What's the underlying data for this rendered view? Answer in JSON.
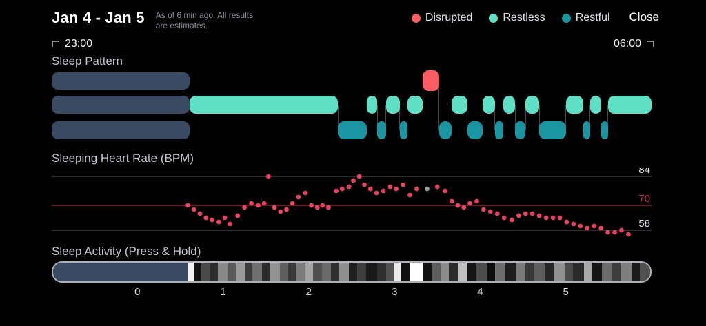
{
  "header": {
    "title": "Jan 4 - Jan 5",
    "note_line1": "As of 6 min ago. All results",
    "note_line2": "are estimates.",
    "close_label": "Close"
  },
  "legend": {
    "items": [
      {
        "label": "Disrupted",
        "color": "#fb5d63"
      },
      {
        "label": "Restless",
        "color": "#5fe0c4"
      },
      {
        "label": "Restful",
        "color": "#1a96a3"
      }
    ]
  },
  "timeline": {
    "start": "23:00",
    "end": "06:00"
  },
  "sections": {
    "sleep_pattern_title": "Sleep Pattern",
    "heart_rate_title": "Sleeping Heart Rate (BPM)",
    "sleep_activity_title": "Sleep Activity (Press & Hold)"
  },
  "colors": {
    "background": "#000000",
    "slate": "#3a4a63",
    "hr_dot": "#ea4361",
    "hr_line": "#d7365a",
    "grid": "#57575b",
    "tick_label": "#e2e2e6",
    "gray_dot": "#9a9aa0",
    "activity_border": "#aeb3bb"
  },
  "chart_data": [
    {
      "type": "hypnogram",
      "title": "Sleep Pattern",
      "xlim_hours": [
        -1,
        6
      ],
      "x_start_label": "23:00",
      "x_end_label": "06:00",
      "states": [
        "disrupted",
        "restless",
        "restful"
      ],
      "presleep_segment": {
        "start": -1.0,
        "end": 0.61
      },
      "segments": [
        {
          "state": "restless",
          "start": 0.61,
          "end": 2.34
        },
        {
          "state": "restful",
          "start": 2.34,
          "end": 2.68
        },
        {
          "state": "restless",
          "start": 2.68,
          "end": 2.8
        },
        {
          "state": "restful",
          "start": 2.8,
          "end": 2.9
        },
        {
          "state": "restless",
          "start": 2.9,
          "end": 3.06
        },
        {
          "state": "restful",
          "start": 3.06,
          "end": 3.15
        },
        {
          "state": "restless",
          "start": 3.15,
          "end": 3.33
        },
        {
          "state": "disrupted",
          "start": 3.33,
          "end": 3.52
        },
        {
          "state": "restful",
          "start": 3.52,
          "end": 3.67
        },
        {
          "state": "restless",
          "start": 3.67,
          "end": 3.85
        },
        {
          "state": "restful",
          "start": 3.85,
          "end": 4.03
        },
        {
          "state": "restless",
          "start": 4.03,
          "end": 4.17
        },
        {
          "state": "restful",
          "start": 4.17,
          "end": 4.27
        },
        {
          "state": "restless",
          "start": 4.27,
          "end": 4.41
        },
        {
          "state": "restful",
          "start": 4.41,
          "end": 4.53
        },
        {
          "state": "restless",
          "start": 4.53,
          "end": 4.69
        },
        {
          "state": "restful",
          "start": 4.69,
          "end": 5.0
        },
        {
          "state": "restless",
          "start": 5.0,
          "end": 5.2
        },
        {
          "state": "restful",
          "start": 5.2,
          "end": 5.28
        },
        {
          "state": "restless",
          "start": 5.28,
          "end": 5.41
        },
        {
          "state": "restful",
          "start": 5.41,
          "end": 5.49
        },
        {
          "state": "restless",
          "start": 5.49,
          "end": 6.0
        }
      ]
    },
    {
      "type": "scatter",
      "title": "Sleeping Heart Rate (BPM)",
      "xlim_hours": [
        -1,
        6
      ],
      "ylim": [
        54,
        88
      ],
      "yticks": [
        84,
        70,
        58
      ],
      "reference_line": 70,
      "points": [
        [
          0.59,
          70
        ],
        [
          0.66,
          68
        ],
        [
          0.73,
          66
        ],
        [
          0.8,
          64
        ],
        [
          0.87,
          63
        ],
        [
          0.95,
          62
        ],
        [
          1.02,
          64
        ],
        [
          1.08,
          61
        ],
        [
          1.17,
          65
        ],
        [
          1.25,
          69
        ],
        [
          1.33,
          71
        ],
        [
          1.41,
          70
        ],
        [
          1.48,
          71
        ],
        [
          1.53,
          84
        ],
        [
          1.6,
          69
        ],
        [
          1.67,
          67
        ],
        [
          1.74,
          68
        ],
        [
          1.81,
          71
        ],
        [
          1.88,
          74
        ],
        [
          1.96,
          76
        ],
        [
          2.03,
          70
        ],
        [
          2.1,
          69
        ],
        [
          2.16,
          70
        ],
        [
          2.23,
          69
        ],
        [
          2.32,
          77
        ],
        [
          2.39,
          78
        ],
        [
          2.47,
          79
        ],
        [
          2.52,
          82
        ],
        [
          2.59,
          84
        ],
        [
          2.65,
          80
        ],
        [
          2.72,
          78
        ],
        [
          2.79,
          76
        ],
        [
          2.87,
          77
        ],
        [
          2.95,
          79
        ],
        [
          3.02,
          78
        ],
        [
          3.1,
          80
        ],
        [
          3.18,
          75
        ],
        [
          3.26,
          78
        ],
        [
          3.5,
          79
        ],
        [
          3.59,
          77
        ],
        [
          3.67,
          72
        ],
        [
          3.74,
          70
        ],
        [
          3.81,
          69
        ],
        [
          3.88,
          71
        ],
        [
          3.96,
          72
        ],
        [
          4.04,
          68
        ],
        [
          4.12,
          67
        ],
        [
          4.2,
          66
        ],
        [
          4.28,
          64
        ],
        [
          4.37,
          63
        ],
        [
          4.45,
          65
        ],
        [
          4.53,
          66
        ],
        [
          4.61,
          66
        ],
        [
          4.69,
          65
        ],
        [
          4.77,
          64
        ],
        [
          4.85,
          64
        ],
        [
          4.93,
          64
        ],
        [
          5.01,
          62
        ],
        [
          5.09,
          61
        ],
        [
          5.17,
          60
        ],
        [
          5.25,
          59
        ],
        [
          5.33,
          60
        ],
        [
          5.41,
          59
        ],
        [
          5.49,
          57
        ],
        [
          5.57,
          57
        ],
        [
          5.65,
          58
        ],
        [
          5.73,
          56
        ]
      ],
      "gray_point": [
        3.38,
        78
      ]
    },
    {
      "type": "heatmap",
      "title": "Sleep Activity (Press & Hold)",
      "xlim_hours": [
        -1,
        6
      ],
      "x_ticks": [
        0,
        1,
        2,
        3,
        4,
        5
      ],
      "presleep_weight": 160,
      "segments": [
        [
          7,
          "#f5f5f5"
        ],
        [
          9,
          "#141414"
        ],
        [
          11,
          "#4a4a4a"
        ],
        [
          9,
          "#2e2e2e"
        ],
        [
          12,
          "#8a8a8a"
        ],
        [
          9,
          "#5a5a5a"
        ],
        [
          11,
          "#9b9b9b"
        ],
        [
          8,
          "#3c3c3c"
        ],
        [
          12,
          "#6f6f6f"
        ],
        [
          9,
          "#2a2a2a"
        ],
        [
          12,
          "#939393"
        ],
        [
          10,
          "#5f5f5f"
        ],
        [
          9,
          "#3a3a3a"
        ],
        [
          12,
          "#7d7d7d"
        ],
        [
          9,
          "#a4a4a4"
        ],
        [
          10,
          "#4f4f4f"
        ],
        [
          11,
          "#6a6a6a"
        ],
        [
          9,
          "#303030"
        ],
        [
          12,
          "#8f8f8f"
        ],
        [
          10,
          "#1f1f1f"
        ],
        [
          11,
          "#3f3f3f"
        ],
        [
          13,
          "#181818"
        ],
        [
          10,
          "#2f2f2f"
        ],
        [
          9,
          "#515151"
        ],
        [
          9,
          "#e9e9e9"
        ],
        [
          10,
          "#101010"
        ],
        [
          16,
          "#ffffff"
        ],
        [
          10,
          "#121212"
        ],
        [
          11,
          "#5c5c5c"
        ],
        [
          10,
          "#8c8c8c"
        ],
        [
          11,
          "#2c2c2c"
        ],
        [
          10,
          "#bfbfbf"
        ],
        [
          11,
          "#161616"
        ],
        [
          13,
          "#4c4c4c"
        ],
        [
          10,
          "#0d0d0d"
        ],
        [
          12,
          "#6e6e6e"
        ],
        [
          13,
          "#1d1d1d"
        ],
        [
          11,
          "#7a7a7a"
        ],
        [
          10,
          "#383838"
        ],
        [
          13,
          "#5e5e5e"
        ],
        [
          11,
          "#262626"
        ],
        [
          12,
          "#909090"
        ],
        [
          10,
          "#4a4a4a"
        ],
        [
          13,
          "#2a2a2a"
        ],
        [
          10,
          "#a9a9a9"
        ],
        [
          12,
          "#151515"
        ],
        [
          12,
          "#6b6b6b"
        ],
        [
          10,
          "#3d3d3d"
        ],
        [
          13,
          "#7f7f7f"
        ],
        [
          10,
          "#1b1b1b"
        ],
        [
          12,
          "#515151"
        ]
      ]
    }
  ]
}
